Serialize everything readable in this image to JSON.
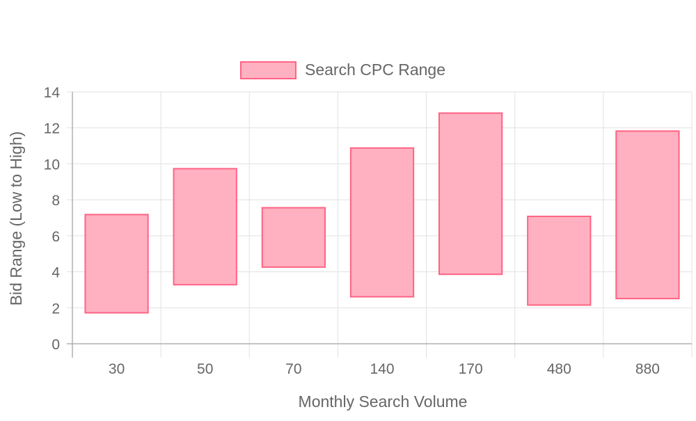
{
  "chart_data": {
    "type": "bar",
    "subtype": "floating-range",
    "legend": {
      "position": "top",
      "entries": [
        "Search CPC Range"
      ]
    },
    "xlabel": "Monthly Search Volume",
    "ylabel": "Bid Range (Low to High)",
    "categories": [
      "30",
      "50",
      "70",
      "140",
      "170",
      "480",
      "880"
    ],
    "series": [
      {
        "name": "Search CPC Range",
        "ranges": [
          [
            1.72,
            7.18
          ],
          [
            3.28,
            9.73
          ],
          [
            4.26,
            7.56
          ],
          [
            2.61,
            10.88
          ],
          [
            3.86,
            12.82
          ],
          [
            2.15,
            7.08
          ],
          [
            2.51,
            11.82
          ]
        ],
        "fill_color": "#ffb1c1",
        "border_color": "#ff6384"
      }
    ],
    "ylim": [
      0,
      14
    ],
    "y_ticks": [
      "0",
      "2",
      "4",
      "6",
      "8",
      "10",
      "12",
      "14"
    ],
    "grid": true
  }
}
